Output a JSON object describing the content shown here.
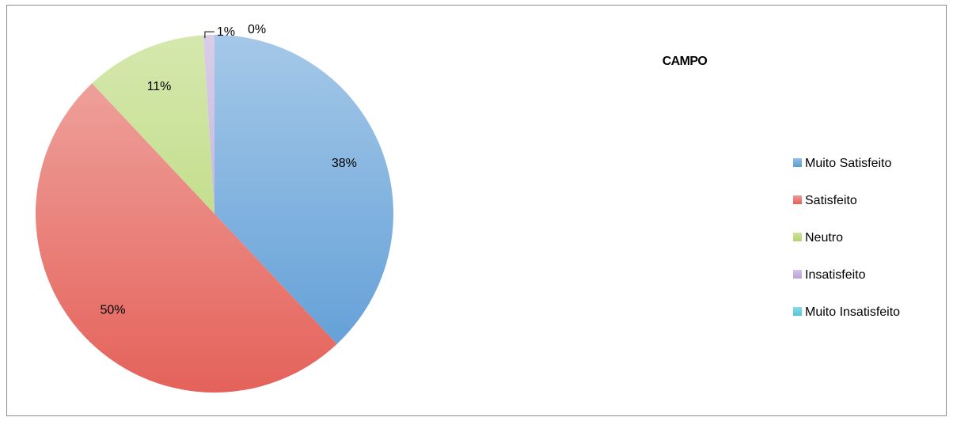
{
  "chart_data": {
    "type": "pie",
    "title": "CAMPO",
    "categories": [
      "Muito Satisfeito",
      "Satisfeito",
      "Neutro",
      "Insatisfeito",
      "Muito Insatisfeito"
    ],
    "values": [
      38,
      50,
      11,
      1,
      0
    ],
    "data_labels": [
      "38%",
      "50%",
      "11%",
      "1%",
      "0%"
    ],
    "colors": [
      "#5b9bd5",
      "#e4625a",
      "#b3d56c",
      "#b9a4d6",
      "#4ec6dc"
    ],
    "legend_position": "right"
  }
}
